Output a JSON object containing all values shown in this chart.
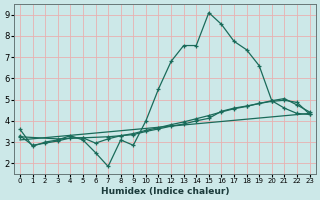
{
  "title": "",
  "xlabel": "Humidex (Indice chaleur)",
  "bg_color": "#cce8e8",
  "grid_color": "#e8b0b0",
  "line_color": "#1a6b5a",
  "xlim": [
    -0.5,
    23.5
  ],
  "ylim": [
    1.5,
    9.5
  ],
  "xticks": [
    0,
    1,
    2,
    3,
    4,
    5,
    6,
    7,
    8,
    9,
    10,
    11,
    12,
    13,
    14,
    15,
    16,
    17,
    18,
    19,
    20,
    21,
    22,
    23
  ],
  "yticks": [
    2,
    3,
    4,
    5,
    6,
    7,
    8,
    9
  ],
  "curve1_x": [
    0,
    1,
    2,
    3,
    4,
    5,
    6,
    7,
    8,
    9,
    10,
    11,
    12,
    13,
    14,
    15,
    16,
    17,
    18,
    19,
    20,
    21,
    22,
    23
  ],
  "curve1_y": [
    3.6,
    2.8,
    3.0,
    3.1,
    3.3,
    3.1,
    2.5,
    1.85,
    3.1,
    2.85,
    4.0,
    5.5,
    6.8,
    7.55,
    7.55,
    9.1,
    8.55,
    7.75,
    7.35,
    6.6,
    4.95,
    4.6,
    4.35,
    4.3
  ],
  "curve2_x": [
    0,
    1,
    2,
    3,
    4,
    5,
    6,
    7,
    8,
    9,
    10,
    11,
    12,
    13,
    14,
    15,
    16,
    17,
    18,
    19,
    20,
    21,
    22,
    23
  ],
  "curve2_y": [
    3.3,
    2.85,
    2.95,
    3.05,
    3.2,
    3.2,
    2.95,
    3.15,
    3.3,
    3.4,
    3.55,
    3.68,
    3.82,
    3.95,
    4.1,
    4.25,
    4.42,
    4.57,
    4.68,
    4.82,
    4.92,
    4.97,
    4.87,
    4.32
  ],
  "curve3_x": [
    0,
    3,
    5,
    7,
    8,
    9,
    10,
    11,
    12,
    13,
    14,
    15,
    16,
    17,
    18,
    19,
    20,
    21,
    22,
    23
  ],
  "curve3_y": [
    3.25,
    3.15,
    3.2,
    3.25,
    3.3,
    3.35,
    3.5,
    3.62,
    3.75,
    3.85,
    4.0,
    4.12,
    4.45,
    4.6,
    4.7,
    4.82,
    4.95,
    5.05,
    4.75,
    4.42
  ],
  "curve4_x": [
    0,
    23
  ],
  "curve4_y": [
    3.1,
    4.35
  ]
}
